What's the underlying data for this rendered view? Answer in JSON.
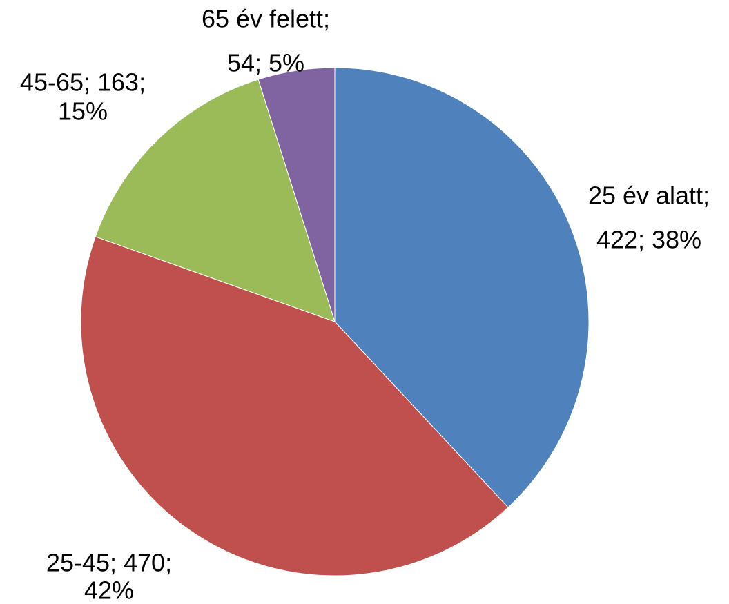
{
  "chart_data": {
    "type": "pie",
    "values": [
      422,
      470,
      163,
      54
    ],
    "value_labels": [
      [
        "25 év alatt;",
        "422; 38%"
      ],
      [
        "25-45; 470;",
        "42%"
      ],
      [
        "45-65; 163;",
        "15%"
      ],
      [
        "65 év felett;",
        "54; 5%"
      ]
    ],
    "colors": [
      "#4f81bd",
      "#c0504d",
      "#9bbb59",
      "#8064a2"
    ]
  }
}
